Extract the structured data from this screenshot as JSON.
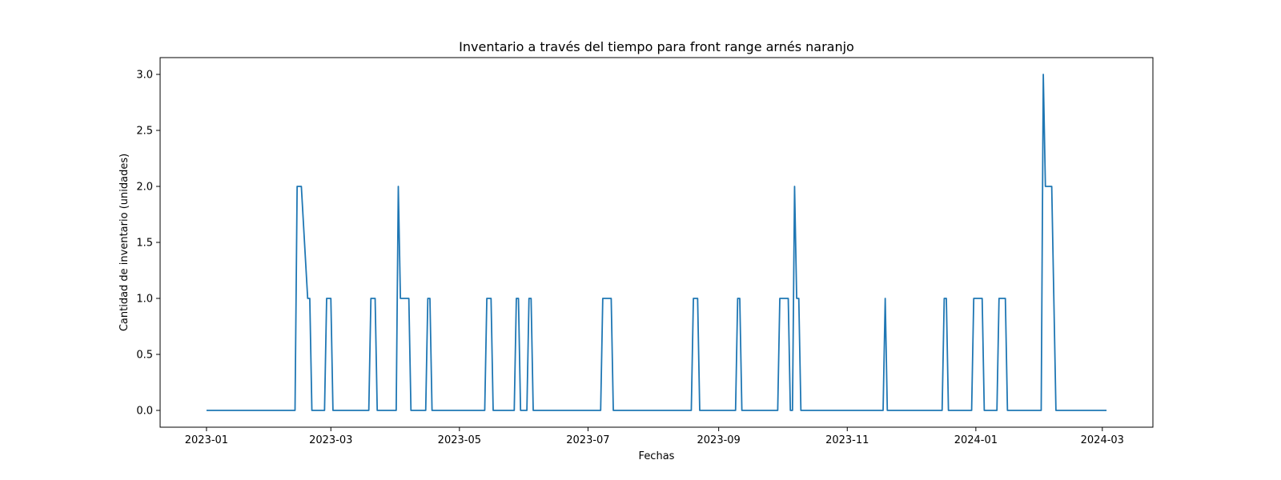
{
  "chart_data": {
    "type": "line",
    "title": "Inventario a través del tiempo para front range arnés naranjo",
    "xlabel": "Fechas",
    "ylabel": "Cantidad de inventario (unidades)",
    "xlim": [
      "2022-12-10",
      "2024-03-25"
    ],
    "ylim": [
      -0.15,
      3.15
    ],
    "grid": false,
    "x_ticks": [
      {
        "date": "2023-01-01",
        "label": "2023-01"
      },
      {
        "date": "2023-03-01",
        "label": "2023-03"
      },
      {
        "date": "2023-05-01",
        "label": "2023-05"
      },
      {
        "date": "2023-07-01",
        "label": "2023-07"
      },
      {
        "date": "2023-09-01",
        "label": "2023-09"
      },
      {
        "date": "2023-11-01",
        "label": "2023-11"
      },
      {
        "date": "2024-01-01",
        "label": "2024-01"
      },
      {
        "date": "2024-03-01",
        "label": "2024-03"
      }
    ],
    "y_ticks": [
      {
        "value": 0,
        "label": "0.0"
      },
      {
        "value": 0.5,
        "label": "0.5"
      },
      {
        "value": 1,
        "label": "1.0"
      },
      {
        "value": 1.5,
        "label": "1.5"
      },
      {
        "value": 2,
        "label": "2.0"
      },
      {
        "value": 2.5,
        "label": "2.5"
      },
      {
        "value": 3,
        "label": "3.0"
      }
    ],
    "series": [
      {
        "color": "#1f77b4",
        "points": [
          [
            "2023-01-01",
            0
          ],
          [
            "2023-02-12",
            0
          ],
          [
            "2023-02-13",
            2
          ],
          [
            "2023-02-15",
            2
          ],
          [
            "2023-02-18",
            1
          ],
          [
            "2023-02-19",
            1
          ],
          [
            "2023-02-20",
            0
          ],
          [
            "2023-02-26",
            0
          ],
          [
            "2023-02-27",
            1
          ],
          [
            "2023-03-01",
            1
          ],
          [
            "2023-03-02",
            0
          ],
          [
            "2023-03-19",
            0
          ],
          [
            "2023-03-20",
            1
          ],
          [
            "2023-03-22",
            1
          ],
          [
            "2023-03-23",
            0
          ],
          [
            "2023-04-01",
            0
          ],
          [
            "2023-04-02",
            2
          ],
          [
            "2023-04-03",
            1
          ],
          [
            "2023-04-07",
            1
          ],
          [
            "2023-04-08",
            0
          ],
          [
            "2023-04-15",
            0
          ],
          [
            "2023-04-16",
            1
          ],
          [
            "2023-04-17",
            1
          ],
          [
            "2023-04-18",
            0
          ],
          [
            "2023-05-13",
            0
          ],
          [
            "2023-05-14",
            1
          ],
          [
            "2023-05-16",
            1
          ],
          [
            "2023-05-17",
            0
          ],
          [
            "2023-05-27",
            0
          ],
          [
            "2023-05-28",
            1
          ],
          [
            "2023-05-29",
            1
          ],
          [
            "2023-05-30",
            0
          ],
          [
            "2023-06-02",
            0
          ],
          [
            "2023-06-03",
            1
          ],
          [
            "2023-06-04",
            1
          ],
          [
            "2023-06-05",
            0
          ],
          [
            "2023-07-07",
            0
          ],
          [
            "2023-07-08",
            1
          ],
          [
            "2023-07-12",
            1
          ],
          [
            "2023-07-13",
            0
          ],
          [
            "2023-08-19",
            0
          ],
          [
            "2023-08-20",
            1
          ],
          [
            "2023-08-22",
            1
          ],
          [
            "2023-08-23",
            0
          ],
          [
            "2023-09-09",
            0
          ],
          [
            "2023-09-10",
            1
          ],
          [
            "2023-09-11",
            1
          ],
          [
            "2023-09-12",
            0
          ],
          [
            "2023-09-29",
            0
          ],
          [
            "2023-09-30",
            1
          ],
          [
            "2023-10-04",
            1
          ],
          [
            "2023-10-05",
            0
          ],
          [
            "2023-10-06",
            0
          ],
          [
            "2023-10-07",
            2
          ],
          [
            "2023-10-08",
            1
          ],
          [
            "2023-10-09",
            1
          ],
          [
            "2023-10-10",
            0
          ],
          [
            "2023-11-18",
            0
          ],
          [
            "2023-11-19",
            1
          ],
          [
            "2023-11-20",
            0
          ],
          [
            "2023-12-16",
            0
          ],
          [
            "2023-12-17",
            1
          ],
          [
            "2023-12-18",
            1
          ],
          [
            "2023-12-19",
            0
          ],
          [
            "2023-12-30",
            0
          ],
          [
            "2023-12-31",
            1
          ],
          [
            "2024-01-04",
            1
          ],
          [
            "2024-01-05",
            0
          ],
          [
            "2024-01-11",
            0
          ],
          [
            "2024-01-12",
            1
          ],
          [
            "2024-01-15",
            1
          ],
          [
            "2024-01-16",
            0
          ],
          [
            "2024-02-01",
            0
          ],
          [
            "2024-02-02",
            3
          ],
          [
            "2024-02-03",
            2
          ],
          [
            "2024-02-06",
            2
          ],
          [
            "2024-02-08",
            0
          ],
          [
            "2024-03-03",
            0
          ]
        ]
      }
    ]
  }
}
